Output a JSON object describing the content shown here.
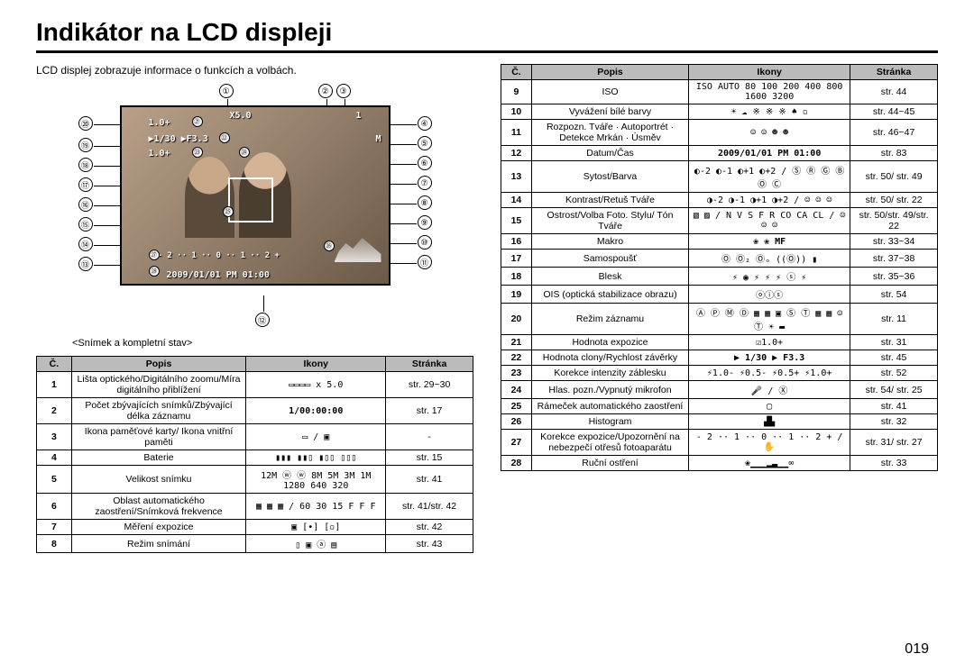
{
  "title": "Indikátor na LCD displeji",
  "subtitle": "LCD displej zobrazuje informace o funkcích a volbách.",
  "caption": "<Snímek a kompletní stav>",
  "page_number": "019",
  "osd": {
    "ev": "1.0+",
    "x": "X5.0",
    "shutter": "▶1/30  ▶F3.3",
    "ev2": "1.0+",
    "scale": "- 2 ·· 1 ·· 0 ·· 1 ·· 2 +",
    "datetime": "2009/01/01 PM 01:00",
    "m": "M",
    "count": "1"
  },
  "headers": {
    "num": "Č.",
    "desc": "Popis",
    "icons": "Ikony",
    "page": "Stránka"
  },
  "table_left": [
    {
      "n": "1",
      "d": "Lišta optického/Digitálního zoomu/Míra digitálního přiblížení",
      "i": "▭▭▭▭   x 5.0",
      "p": "str. 29~30"
    },
    {
      "n": "2",
      "d": "Počet zbývajících snímků/Zbývající délka záznamu",
      "i": "1/00:00:00",
      "p": "str. 17"
    },
    {
      "n": "3",
      "d": "Ikona paměťové karty/ Ikona vnitřní paměti",
      "i": "▭ / ▣",
      "p": "-"
    },
    {
      "n": "4",
      "d": "Baterie",
      "i": "▮▮▮ ▮▮▯ ▮▯▯ ▯▯▯",
      "p": "str. 15"
    },
    {
      "n": "5",
      "d": "Velikost snímku",
      "i": "12M ⓦ ⓦ 8M 5M 3M 1M 1280 640 320",
      "p": "str. 41"
    },
    {
      "n": "6",
      "d": "Oblast automatického zaostření/Snímková frekvence",
      "i": "▦ ▦ ▦ / 60 30 15 F F F",
      "p": "str. 41/str. 42"
    },
    {
      "n": "7",
      "d": "Měření expozice",
      "i": "▣ [•] [▫]",
      "p": "str. 42"
    },
    {
      "n": "8",
      "d": "Režim snímání",
      "i": "▯ ▣ ⓐ ▤",
      "p": "str. 43"
    }
  ],
  "table_right": [
    {
      "n": "9",
      "d": "ISO",
      "i": "ISO AUTO 80 100 200 400 800 1600 3200",
      "p": "str. 44"
    },
    {
      "n": "10",
      "d": "Vyvážení bílé barvy",
      "i": "☀ ☁ ※ ※ ※ ♠ ▫",
      "p": "str. 44~45"
    },
    {
      "n": "11",
      "d": "Rozpozn. Tváře · Autoportrét · Detekce Mrkán · Úsměv",
      "i": "☺ ☺ ☻ ☻",
      "p": "str. 46~47"
    },
    {
      "n": "12",
      "d": "Datum/Čas",
      "i": "2009/01/01 PM 01:00",
      "p": "str. 83"
    },
    {
      "n": "13",
      "d": "Sytost/Barva",
      "i": "◐-2 ◐-1 ◐+1 ◐+2 / Ⓢ Ⓡ Ⓖ Ⓑ Ⓞ Ⓒ",
      "p": "str. 50/ str. 49"
    },
    {
      "n": "14",
      "d": "Kontrast/Retuš Tváře",
      "i": "◑-2 ◑-1 ◑+1 ◑+2 / ☺ ☺ ☺",
      "p": "str. 50/ str. 22"
    },
    {
      "n": "15",
      "d": "Ostrost/Volba Foto. Stylu/ Tón Tváře",
      "i": "▧ ▨ / N V S F R CO CA CL / ☺ ☺ ☺",
      "p": "str. 50/str. 49/str. 22"
    },
    {
      "n": "16",
      "d": "Makro",
      "i": "❀ ❀ MF",
      "p": "str. 33~34"
    },
    {
      "n": "17",
      "d": "Samospoušť",
      "i": "Ⓞ Ⓞ₂ Ⓞₒ ((Ⓞ)) ▮",
      "p": "str. 37~38"
    },
    {
      "n": "18",
      "d": "Blesk",
      "i": "⚡ ◉ ⚡ ⚡ ⚡ ⓢ ⚡",
      "p": "str. 35~36"
    },
    {
      "n": "19",
      "d": "OIS (optická stabilizace obrazu)",
      "i": "ⓞⓘⓢ",
      "p": "str. 54"
    },
    {
      "n": "20",
      "d": "Režim záznamu",
      "i": "Ⓐ Ⓟ Ⓜ Ⓓ ▦ ▦ ▣ Ⓢ Ⓣ ▦ ▦ ☺ Ⓣ ☀ ▬",
      "p": "str. 11"
    },
    {
      "n": "21",
      "d": "Hodnota expozice",
      "i": "☑1.0+",
      "p": "str. 31"
    },
    {
      "n": "22",
      "d": "Hodnota clony/Rychlost závěrky",
      "i": "▶ 1/30 ▶ F3.3",
      "p": "str. 45"
    },
    {
      "n": "23",
      "d": "Korekce intenzity záblesku",
      "i": "⚡1.0- ⚡0.5- ⚡0.5+ ⚡1.0+",
      "p": "str. 52"
    },
    {
      "n": "24",
      "d": "Hlas. pozn./Vypnutý mikrofon",
      "i": "🎤 / Ⓧ",
      "p": "str. 54/ str. 25"
    },
    {
      "n": "25",
      "d": "Rámeček automatického zaostření",
      "i": "▢",
      "p": "str. 41"
    },
    {
      "n": "26",
      "d": "Histogram",
      "i": "▟▙",
      "p": "str. 32"
    },
    {
      "n": "27",
      "d": "Korekce expozice/Upozornění na nebezpečí otřesů fotoaparátu",
      "i": "- 2 ·· 1 ·· 0 ·· 1 ·· 2 + / ✋",
      "p": "str. 31/ str. 27"
    },
    {
      "n": "28",
      "d": "Ruční ostření",
      "i": "❀▁▁▁▂▃▁▁∞",
      "p": "str. 33"
    }
  ],
  "callouts": {
    "top": [
      "①",
      "②",
      "③"
    ],
    "right": [
      "④",
      "⑤",
      "⑥",
      "⑦",
      "⑧",
      "⑨",
      "⑩",
      "⑪"
    ],
    "bottom": [
      "⑫"
    ],
    "left": [
      "⑳",
      "⑲",
      "⑱",
      "⑰",
      "⑯",
      "⑮",
      "⑭",
      "⑬"
    ],
    "inner": [
      "㉑",
      "㉒",
      "㉓",
      "㉔",
      "㉕",
      "㉖",
      "㉗",
      "㉘"
    ]
  }
}
